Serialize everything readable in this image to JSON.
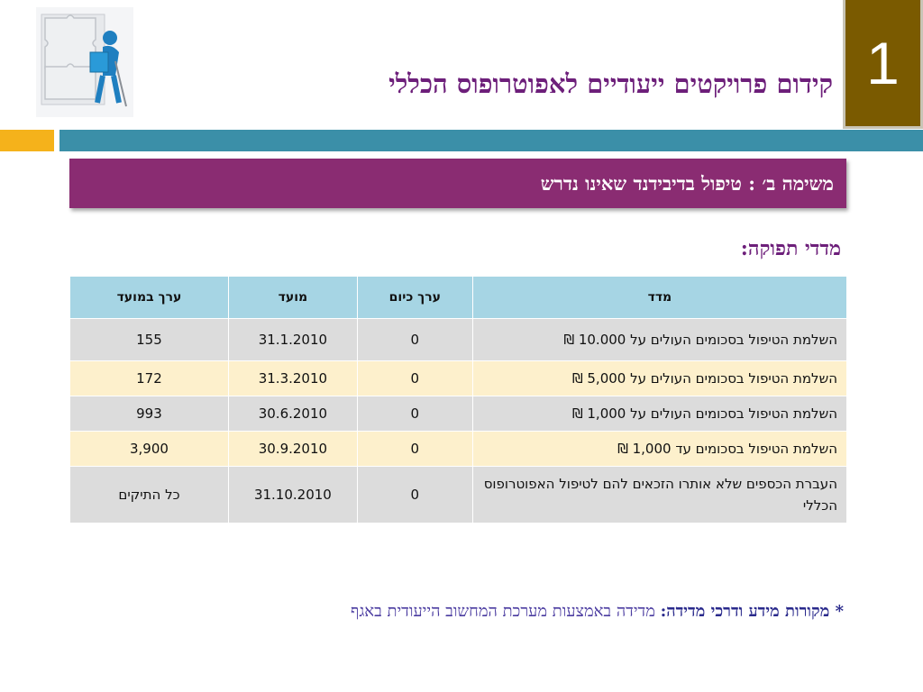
{
  "slide_number": "1",
  "title": "קידום פרויקטים ייעודיים לאפוטרופוס הכללי",
  "banner": "משימה ב׳ : טיפול בדיבידנד שאינו נדרש",
  "subheading": "מדדי תפוקה:",
  "table": {
    "headers": [
      "מדד",
      "ערך כיום",
      "מועד",
      "ערך במועד"
    ],
    "rows": [
      [
        "השלמת הטיפול בסכומים העולים על 10.000 ₪",
        "0",
        "31.1.2010",
        "155"
      ],
      [
        "השלמת הטיפול בסכומים העולים על 5,000 ₪",
        "0",
        "31.3.2010",
        "172"
      ],
      [
        "השלמת הטיפול בסכומים העולים על 1,000 ₪",
        "0",
        "30.6.2010",
        "993"
      ],
      [
        "השלמת הטיפול בסכומים עד 1,000 ₪",
        "0",
        "30.9.2010",
        "3,900"
      ],
      [
        "העברת הכספים שלא אותרו הזכאים להם לטיפול האפוטרופוס הכללי",
        "0",
        "31.10.2010",
        "כל התיקים"
      ]
    ]
  },
  "footnote": {
    "label": "* מקורות מידע ודרכי מדידה:",
    "text": "מדידה באמצעות מערכת המחשוב הייעודית באגף"
  },
  "colors": {
    "title": "#6d1f7a",
    "banner": "#8a2c72",
    "teal_bar": "#3b8fa8",
    "orange_bar": "#f5b21b",
    "badge": "#7a5a00",
    "table_header": "#a6d5e4",
    "row_gray": "#dcdcdc",
    "row_cream": "#fdf0cc"
  },
  "icons": {
    "logo": "puzzle-figure-icon"
  }
}
